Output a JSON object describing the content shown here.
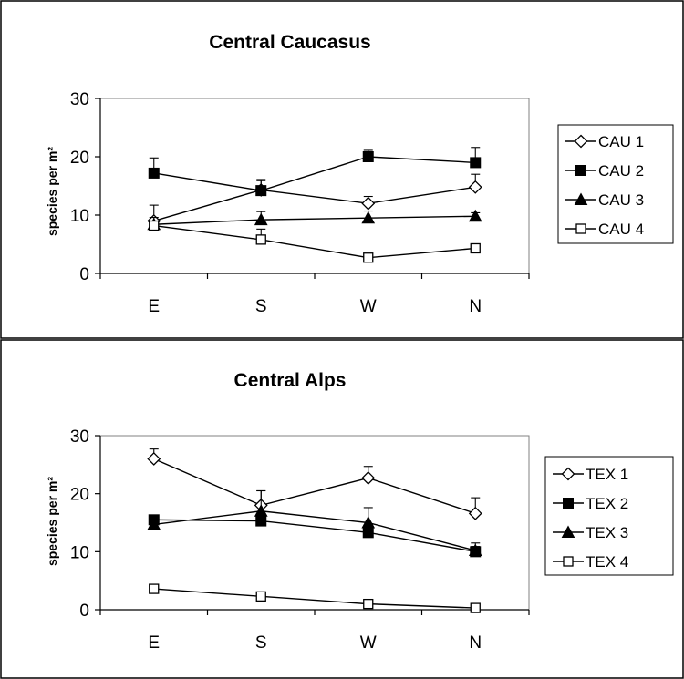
{
  "chart_data": [
    {
      "type": "line",
      "title": "Central Caucasus",
      "xlabel": "",
      "ylabel": "species per m²",
      "ylim": [
        0,
        30
      ],
      "yticks": [
        "0",
        "10",
        "20",
        "30"
      ],
      "categories": [
        "E",
        "S",
        "W",
        "N"
      ],
      "grid": false,
      "legend_position": "right",
      "series": [
        {
          "name": "CAU 1",
          "marker": "diamond-open",
          "values": [
            9,
            14.3,
            12,
            14.8
          ],
          "errors": [
            2.7,
            1.8,
            1.2,
            2.2
          ]
        },
        {
          "name": "CAU 2",
          "marker": "square-filled",
          "values": [
            17.2,
            14.2,
            20,
            19
          ],
          "errors": [
            2.6,
            1.7,
            1.1,
            2.6
          ]
        },
        {
          "name": "CAU 3",
          "marker": "triangle-filled",
          "values": [
            8.4,
            9.2,
            9.5,
            9.8
          ],
          "errors": [
            1.2,
            1.4,
            1.2,
            0.6
          ]
        },
        {
          "name": "CAU 4",
          "marker": "square-open",
          "values": [
            8.2,
            5.8,
            2.7,
            4.3
          ],
          "errors": [
            0.4,
            1.8,
            0.4,
            0.4
          ]
        }
      ]
    },
    {
      "type": "line",
      "title": "Central Alps",
      "xlabel": "",
      "ylabel": "species per m²",
      "ylim": [
        0,
        30
      ],
      "yticks": [
        "0",
        "10",
        "20",
        "30"
      ],
      "categories": [
        "E",
        "S",
        "W",
        "N"
      ],
      "grid": false,
      "legend_position": "right",
      "series": [
        {
          "name": "TEX 1",
          "marker": "diamond-open",
          "values": [
            26,
            18,
            22.7,
            16.6
          ],
          "errors": [
            1.7,
            2.5,
            2.0,
            2.7
          ]
        },
        {
          "name": "TEX 2",
          "marker": "square-filled",
          "values": [
            15.5,
            15.3,
            13.3,
            10
          ],
          "errors": [
            0.3,
            0.5,
            0.7,
            1.5
          ]
        },
        {
          "name": "TEX 3",
          "marker": "triangle-filled",
          "values": [
            14.7,
            17,
            15,
            10.2
          ],
          "errors": [
            0.4,
            3.5,
            2.6,
            0.7
          ]
        },
        {
          "name": "TEX 4",
          "marker": "square-open",
          "values": [
            3.6,
            2.3,
            1,
            0.3
          ],
          "errors": [
            0.3,
            0.3,
            0.3,
            0.2
          ]
        }
      ]
    }
  ]
}
